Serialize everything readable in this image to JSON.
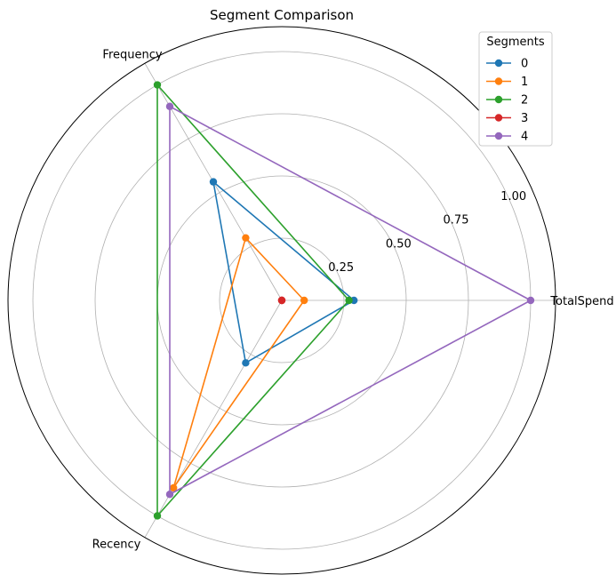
{
  "chart_data": {
    "type": "radar",
    "title": "Segment Comparison",
    "axes": [
      "TotalSpend",
      "Frequency",
      "Recency"
    ],
    "radial_ticks": [
      "0.25",
      "0.50",
      "0.75",
      "1.00"
    ],
    "radial_tick_values": [
      0.25,
      0.5,
      0.75,
      1.0
    ],
    "rlim": [
      0,
      1.1
    ],
    "grid": true,
    "legend": {
      "title": "Segments",
      "placement": "top-right"
    },
    "series": [
      {
        "name": "0",
        "color": "#1f77b4",
        "values": [
          0.29,
          0.55,
          0.29
        ]
      },
      {
        "name": "1",
        "color": "#ff7f0e",
        "values": [
          0.09,
          0.29,
          0.87
        ]
      },
      {
        "name": "2",
        "color": "#2ca02c",
        "values": [
          0.27,
          1.0,
          1.0
        ]
      },
      {
        "name": "3",
        "color": "#d62728",
        "values": [
          0.0,
          0.0,
          0.0
        ]
      },
      {
        "name": "4",
        "color": "#9467bd",
        "values": [
          1.0,
          0.9,
          0.9
        ]
      }
    ]
  }
}
